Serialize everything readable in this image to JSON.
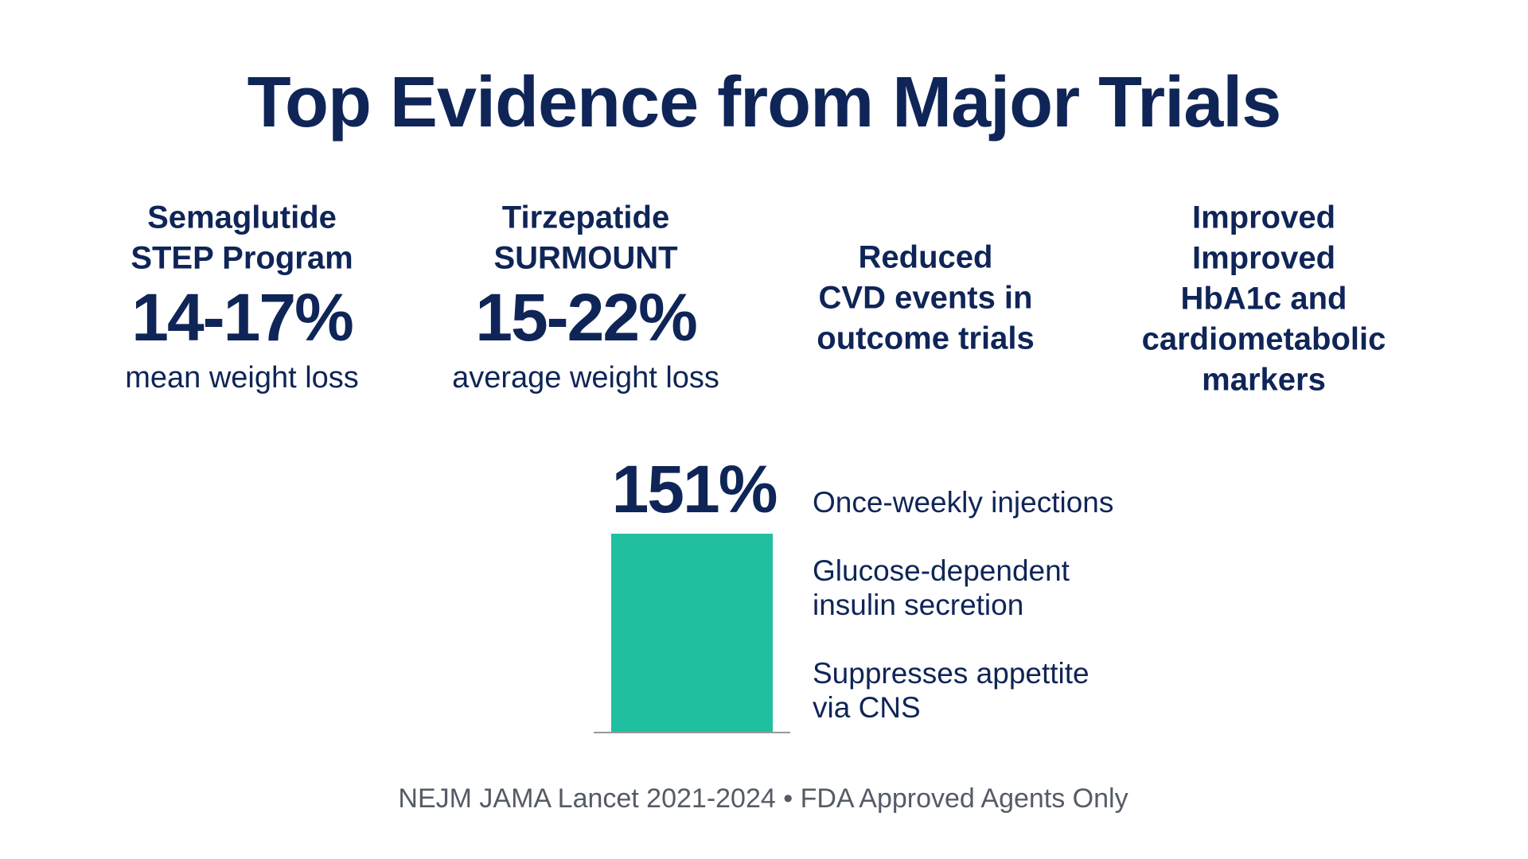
{
  "title": "Top Evidence from Major Trials",
  "columns": [
    {
      "heading": [
        "Semaglutide",
        "STEP Program"
      ],
      "stat": "14-17%",
      "caption": "mean weight loss"
    },
    {
      "heading": [
        "Tirzepatide",
        "SURMOUNT"
      ],
      "stat": "15-22%",
      "caption": "average weight loss"
    },
    {
      "heading": [
        "Reduced",
        "CVD events in",
        "outcome trials"
      ]
    },
    {
      "heading": [
        "Improved",
        "Improved",
        "HbA1c and",
        "cardiometabolic",
        "markers"
      ]
    }
  ],
  "highlight": "151%",
  "features": [
    [
      "Once-weekly injections"
    ],
    [
      "Glucose-dependent",
      "insulin secretion"
    ],
    [
      "Suppresses appettite",
      "via CNS"
    ]
  ],
  "footer": "NEJM  JAMA Lancet 2021-2024 • FDA Approved Agents Only"
}
